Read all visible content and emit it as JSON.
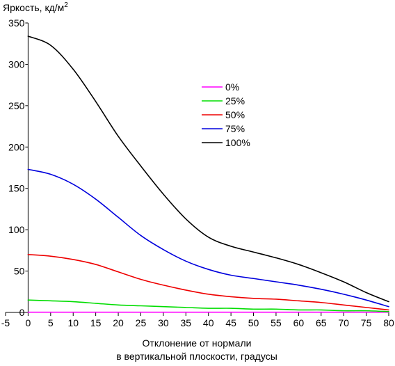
{
  "chart_data": {
    "type": "line",
    "title": "",
    "ylabel": "Яркость, кд/м",
    "ylabel_superscript": "2",
    "xlabel_lines": [
      "Отклонение от нормали",
      "в вертикальной плоскости, градусы"
    ],
    "xlim": [
      -5,
      80
    ],
    "ylim": [
      0,
      350
    ],
    "xticks": [
      -5,
      0,
      5,
      10,
      15,
      20,
      25,
      30,
      35,
      40,
      45,
      50,
      55,
      60,
      65,
      70,
      75,
      80
    ],
    "xtick_labels": [
      "-5",
      "0",
      "5",
      "10",
      "15",
      "20",
      "25",
      "30",
      "35",
      "40",
      "45",
      "50",
      "55",
      "60",
      "65",
      "70",
      "75",
      "80"
    ],
    "yticks": [
      0,
      50,
      100,
      150,
      200,
      250,
      300,
      350
    ],
    "ytick_labels": [
      "0",
      "50",
      "100",
      "150",
      "200",
      "250",
      "300",
      "350"
    ],
    "grid": false,
    "legend_position": "upper-center-right",
    "x": [
      0,
      5,
      10,
      15,
      20,
      25,
      30,
      35,
      40,
      45,
      50,
      55,
      60,
      65,
      70,
      75,
      80
    ],
    "series": [
      {
        "name": "0%",
        "color": "#ff00ff",
        "values": [
          0.3,
          0.3,
          0.3,
          0.3,
          0.3,
          0.3,
          0.3,
          0.3,
          0.3,
          0.3,
          0.3,
          0.3,
          0.3,
          0.3,
          0.3,
          0.3,
          0.3
        ]
      },
      {
        "name": "25%",
        "color": "#00dd00",
        "values": [
          15,
          14,
          13,
          11,
          9,
          8,
          7,
          6,
          5,
          5,
          4,
          4,
          3,
          3,
          2,
          2,
          1
        ]
      },
      {
        "name": "50%",
        "color": "#ee0000",
        "values": [
          70,
          68,
          64,
          58,
          49,
          40,
          33,
          27,
          22,
          19,
          17,
          16,
          14,
          12,
          9,
          6,
          3
        ]
      },
      {
        "name": "75%",
        "color": "#0000dd",
        "values": [
          173,
          167,
          155,
          137,
          115,
          93,
          76,
          62,
          52,
          45,
          41,
          37,
          33,
          28,
          22,
          15,
          7
        ]
      },
      {
        "name": "100%",
        "color": "#000000",
        "values": [
          334,
          323,
          294,
          255,
          213,
          177,
          143,
          113,
          91,
          80,
          73,
          66,
          58,
          48,
          37,
          24,
          13
        ]
      }
    ]
  }
}
